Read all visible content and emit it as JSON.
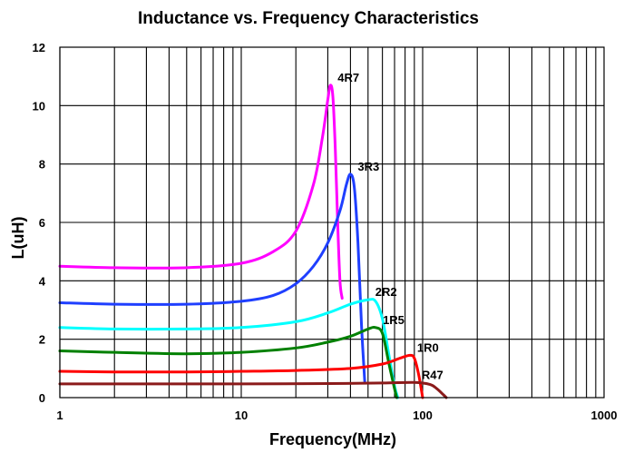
{
  "chart_data": {
    "type": "line",
    "title": "Inductance vs. Frequency Characteristics",
    "xlabel": "Frequency(MHz)",
    "ylabel": "L(uH)",
    "xscale": "log",
    "xlim": [
      1,
      1000
    ],
    "ylim": [
      0,
      12
    ],
    "x_ticks": [
      1,
      10,
      100,
      1000
    ],
    "x_tick_labels": [
      "1",
      "10",
      "100",
      "1000"
    ],
    "y_ticks": [
      0,
      2,
      4,
      6,
      8,
      10,
      12
    ],
    "y_tick_labels": [
      "0",
      "2",
      "4",
      "6",
      "8",
      "10",
      "12"
    ],
    "grid": true,
    "legend": "none (series labeled directly on curves)",
    "series": [
      {
        "name": "4R7",
        "color": "#ff00ff",
        "x": [
          1,
          2,
          5,
          10,
          15,
          20,
          25,
          28,
          30,
          31,
          32,
          33,
          34,
          35,
          36
        ],
        "y": [
          4.5,
          4.45,
          4.45,
          4.6,
          5.0,
          5.7,
          7.3,
          8.9,
          10.2,
          10.7,
          10.3,
          8.5,
          6.0,
          4.0,
          3.4
        ]
      },
      {
        "name": "3R3",
        "color": "#1f3fff",
        "x": [
          1,
          2,
          5,
          10,
          15,
          20,
          25,
          30,
          35,
          38,
          40,
          42,
          44,
          46,
          48
        ],
        "y": [
          3.25,
          3.2,
          3.2,
          3.3,
          3.5,
          3.9,
          4.5,
          5.3,
          6.4,
          7.3,
          7.65,
          7.2,
          5.3,
          2.5,
          0.5
        ]
      },
      {
        "name": "2R2",
        "color": "#00ffff",
        "x": [
          1,
          2,
          5,
          10,
          20,
          30,
          40,
          50,
          55,
          60,
          65,
          70,
          73
        ],
        "y": [
          2.4,
          2.35,
          2.35,
          2.4,
          2.6,
          2.9,
          3.2,
          3.35,
          3.3,
          2.7,
          1.5,
          0.4,
          0.0
        ]
      },
      {
        "name": "1R5",
        "color": "#008000",
        "x": [
          1,
          2,
          5,
          10,
          20,
          30,
          40,
          50,
          55,
          60,
          65,
          70,
          72
        ],
        "y": [
          1.6,
          1.55,
          1.5,
          1.55,
          1.7,
          1.9,
          2.1,
          2.35,
          2.4,
          2.2,
          1.2,
          0.3,
          0.0
        ]
      },
      {
        "name": "1R0",
        "color": "#ff0000",
        "x": [
          1,
          2,
          5,
          10,
          20,
          40,
          60,
          75,
          85,
          90,
          95,
          100
        ],
        "y": [
          0.9,
          0.88,
          0.88,
          0.9,
          0.93,
          1.0,
          1.15,
          1.35,
          1.45,
          1.35,
          0.8,
          0.0
        ]
      },
      {
        "name": "R47",
        "color": "#8b1a1a",
        "x": [
          1,
          5,
          10,
          30,
          60,
          90,
          110,
          120,
          130,
          135
        ],
        "y": [
          0.47,
          0.47,
          0.47,
          0.48,
          0.5,
          0.52,
          0.45,
          0.3,
          0.1,
          0.0
        ]
      }
    ]
  }
}
